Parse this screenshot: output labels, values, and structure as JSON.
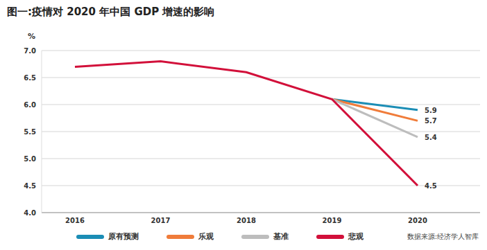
{
  "chart_data": {
    "type": "line",
    "title": "图一:疫情对 2020 年中国 GDP 增速的影响",
    "y_label": "%",
    "source": "数据来源:经济学人智库",
    "categories": [
      "2016",
      "2017",
      "2018",
      "2019",
      "2020"
    ],
    "series": [
      {
        "name": "原有预测",
        "color": "#1b8db5",
        "values": [
          null,
          null,
          null,
          6.1,
          5.9
        ],
        "value_labels": [
          null,
          null,
          null,
          null,
          "5.9"
        ]
      },
      {
        "name": "乐观",
        "color": "#f07c3a",
        "values": [
          null,
          null,
          null,
          6.1,
          5.7
        ],
        "value_labels": [
          null,
          null,
          null,
          null,
          "5.7"
        ]
      },
      {
        "name": "基准",
        "color": "#bdbdbd",
        "values": [
          null,
          null,
          null,
          6.1,
          5.4
        ],
        "value_labels": [
          null,
          null,
          null,
          null,
          "5.4"
        ]
      },
      {
        "name": "悲观",
        "color": "#d2103a",
        "values": [
          6.7,
          6.8,
          6.6,
          6.1,
          4.5
        ],
        "value_labels": [
          null,
          null,
          null,
          null,
          "4.5"
        ]
      }
    ],
    "ylim": [
      4.0,
      7.0
    ],
    "yticks": [
      {
        "value": 4.0,
        "label": "4.0"
      },
      {
        "value": 4.5,
        "label": "4.5"
      },
      {
        "value": 5.0,
        "label": "5.0"
      },
      {
        "value": 5.5,
        "label": "5.5"
      },
      {
        "value": 6.0,
        "label": "6.0"
      },
      {
        "value": 6.5,
        "label": "6.5"
      },
      {
        "value": 7.0,
        "label": "7.0"
      }
    ],
    "grid": true,
    "legend": "bottom"
  }
}
